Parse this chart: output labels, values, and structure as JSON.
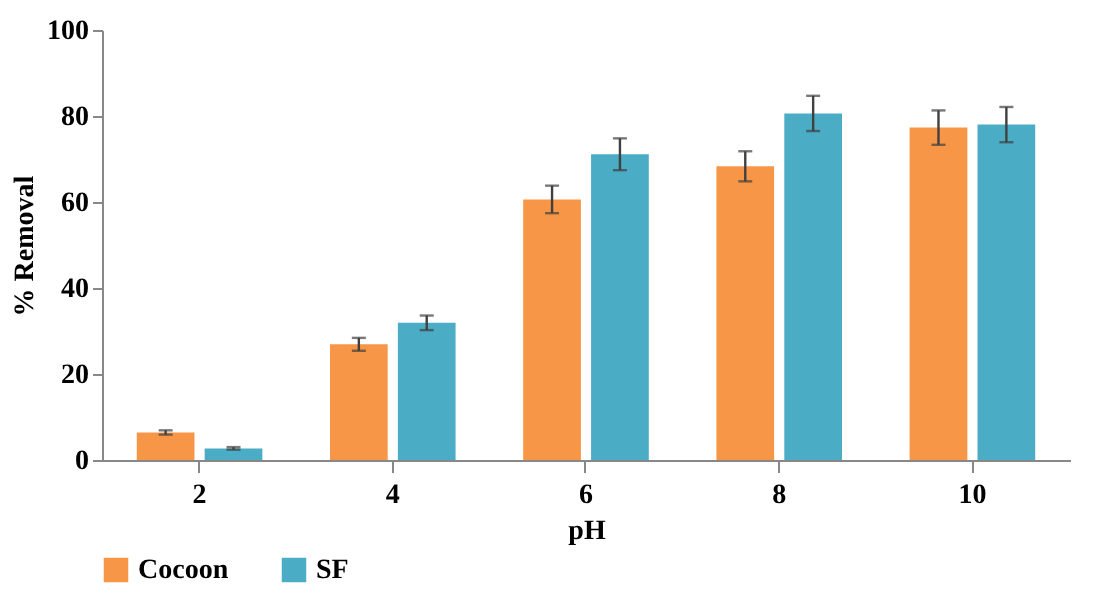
{
  "chart_data": {
    "type": "bar",
    "xlabel": "pH",
    "ylabel": "% Removal",
    "categories": [
      "2",
      "4",
      "6",
      "8",
      "10"
    ],
    "series": [
      {
        "name": "Cocoon",
        "color": "#f79646",
        "values": [
          6.4,
          26.9,
          60.6,
          68.3,
          77.3
        ],
        "errors": [
          0.5,
          1.5,
          3.2,
          3.5,
          4.0
        ]
      },
      {
        "name": "SF",
        "color": "#4bacc6",
        "values": [
          2.7,
          31.9,
          71.1,
          80.6,
          78.0
        ],
        "errors": [
          0.3,
          1.7,
          3.7,
          4.1,
          4.1
        ]
      }
    ],
    "ylim": [
      0,
      100
    ],
    "yticks": [
      0,
      20,
      40,
      60,
      80,
      100
    ],
    "grid": false,
    "legend": "bottom"
  }
}
